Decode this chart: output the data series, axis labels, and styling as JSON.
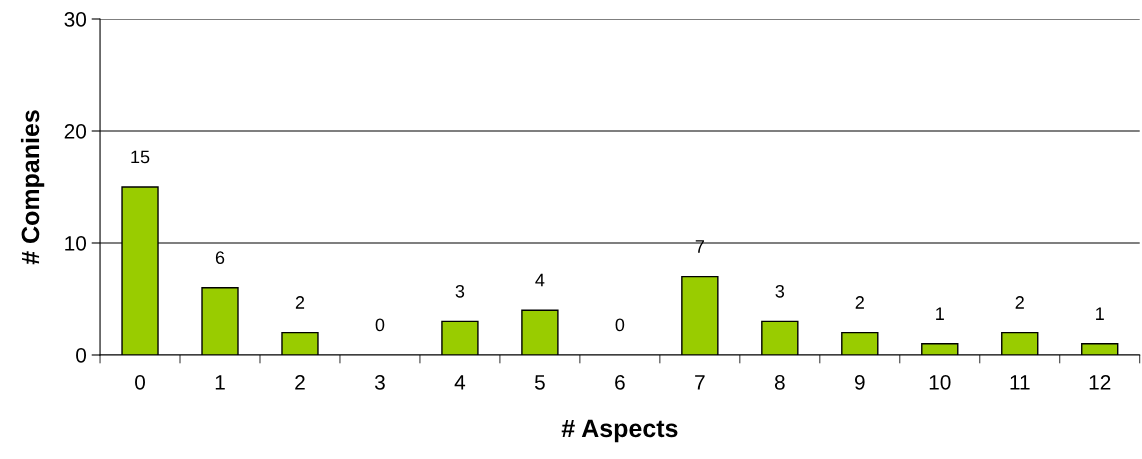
{
  "chart_data": {
    "type": "bar",
    "xlabel": "# Aspects",
    "ylabel": "# Companies",
    "categories": [
      "0",
      "1",
      "2",
      "3",
      "4",
      "5",
      "6",
      "7",
      "8",
      "9",
      "10",
      "11",
      "12"
    ],
    "values": [
      15,
      6,
      2,
      0,
      3,
      4,
      0,
      7,
      3,
      2,
      1,
      2,
      1
    ],
    "color": "#99cc00",
    "ylim": [
      0,
      30
    ],
    "yticks": [
      0,
      10,
      20,
      30
    ],
    "grid": "y",
    "data_labels": true
  }
}
